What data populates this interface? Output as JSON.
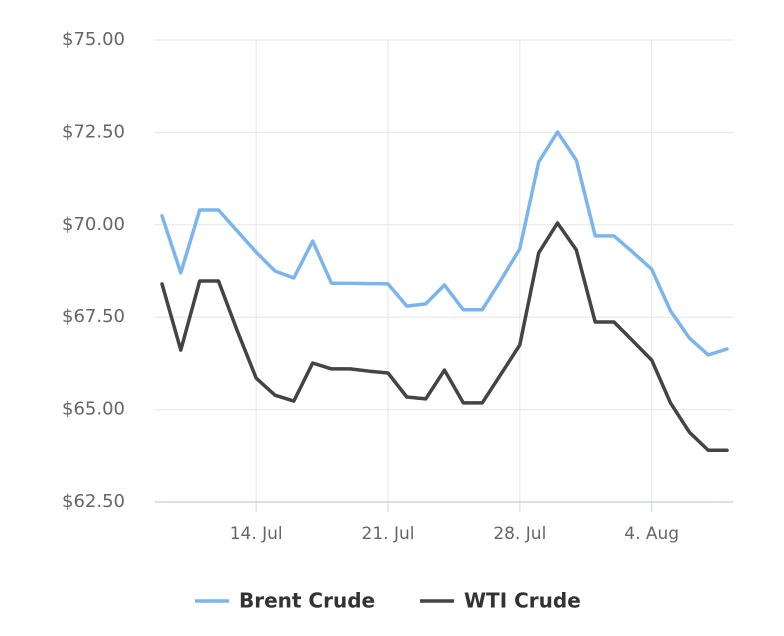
{
  "chart_data": {
    "type": "line",
    "categories": [
      null,
      null,
      null,
      null,
      null,
      "14. Jul",
      null,
      null,
      null,
      null,
      null,
      null,
      "21. Jul",
      null,
      null,
      null,
      null,
      null,
      null,
      "28. Jul",
      null,
      null,
      null,
      null,
      null,
      null,
      "4. Aug",
      null,
      null,
      null,
      null
    ],
    "series": [
      {
        "name": "Brent Crude",
        "color": "#7cb5ec",
        "values": [
          70.24,
          68.7,
          70.4,
          70.4,
          69.83,
          69.26,
          68.75,
          68.56,
          69.56,
          68.42,
          68.42,
          68.41,
          68.4,
          67.8,
          67.86,
          68.37,
          67.7,
          67.7,
          68.51,
          69.35,
          71.7,
          72.51,
          71.75,
          69.7,
          69.7,
          69.26,
          68.8,
          67.67,
          66.94,
          66.48,
          66.64
        ]
      },
      {
        "name": "WTI Crude",
        "color": "#434348",
        "values": [
          68.4,
          66.61,
          68.48,
          68.48,
          67.13,
          65.85,
          65.39,
          65.23,
          66.26,
          66.1,
          66.1,
          66.04,
          65.99,
          65.34,
          65.29,
          66.07,
          65.18,
          65.18,
          65.96,
          66.75,
          69.24,
          70.05,
          69.32,
          67.37,
          67.37,
          66.86,
          66.34,
          65.18,
          64.39,
          63.9,
          63.9
        ]
      }
    ],
    "ylim": [
      62.5,
      75
    ],
    "yticks": [
      {
        "value": 62.5,
        "label": "$62.50"
      },
      {
        "value": 65,
        "label": "$65.00"
      },
      {
        "value": 67.5,
        "label": "$67.50"
      },
      {
        "value": 70,
        "label": "$70.00"
      },
      {
        "value": 72.5,
        "label": "$72.50"
      },
      {
        "value": 75,
        "label": "$75.00"
      }
    ],
    "grid": true
  }
}
